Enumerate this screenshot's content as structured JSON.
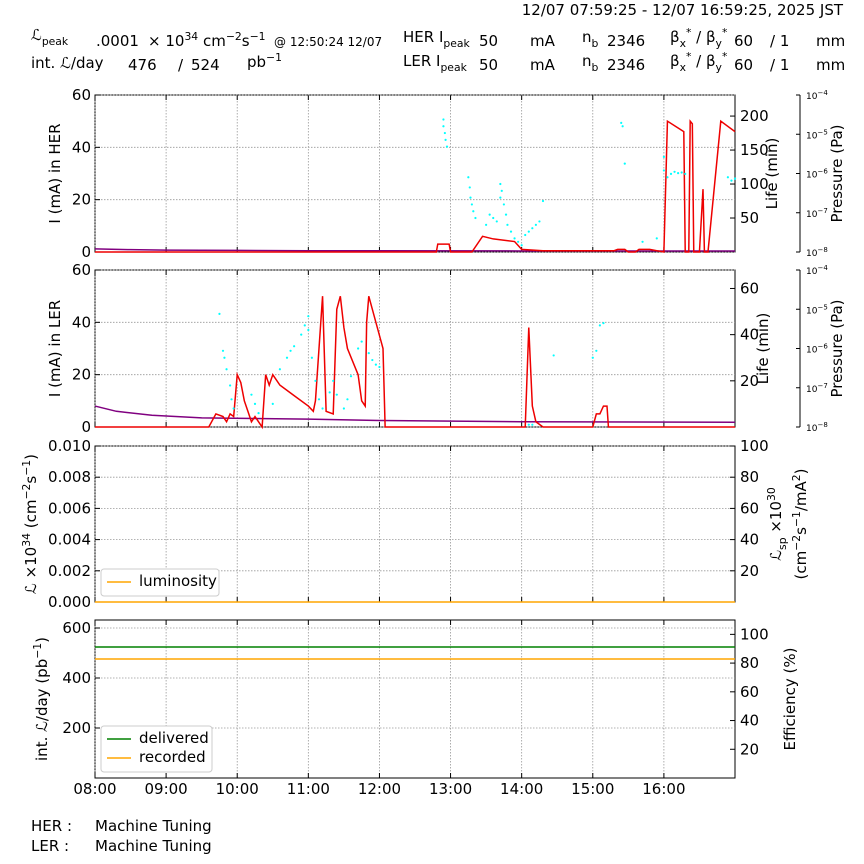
{
  "header": {
    "time_range": "12/07 07:59:25 - 12/07 16:59:25, 2025 JST",
    "lpeak": {
      "label": [
        {
          "text": "ℒ"
        },
        {
          "sub": "peak"
        }
      ],
      "value": ".0001",
      "unit": [
        {
          "text": "× 10"
        },
        {
          "sup": "34"
        },
        {
          "text": " cm"
        },
        {
          "sup": "−2"
        },
        {
          "text": "s"
        },
        {
          "sup": "−1"
        }
      ],
      "at": "@ 12:50:24 12/07"
    },
    "intl": {
      "label": "int. ℒ/day",
      "recorded": "476",
      "sep": "/",
      "delivered": "524",
      "unit": [
        {
          "text": "pb"
        },
        {
          "sup": "−1"
        }
      ]
    },
    "rings": [
      {
        "name": [
          {
            "text": "HER I"
          },
          {
            "sub": "peak"
          }
        ],
        "current": "50",
        "unit": "mA",
        "nb": [
          {
            "text": "n"
          },
          {
            "sub": "b"
          }
        ],
        "bunches": "2346",
        "beta": [
          {
            "text": "β"
          },
          {
            "sub": "x"
          },
          {
            "sup": "*"
          },
          {
            "text": " / β"
          },
          {
            "sub": "y"
          },
          {
            "sup": "*"
          }
        ],
        "beta_value": "60",
        "beta_sep": "/ 1",
        "beta_unit": "mm"
      },
      {
        "name": [
          {
            "text": "LER I"
          },
          {
            "sub": "peak"
          }
        ],
        "current": "50",
        "unit": "mA",
        "nb": [
          {
            "text": "n"
          },
          {
            "sub": "b"
          }
        ],
        "bunches": "2346",
        "beta": [
          {
            "text": "β"
          },
          {
            "sub": "x"
          },
          {
            "sup": "*"
          },
          {
            "text": " / β"
          },
          {
            "sub": "y"
          },
          {
            "sup": "*"
          }
        ],
        "beta_value": "60",
        "beta_sep": "/ 1",
        "beta_unit": "mm"
      }
    ]
  },
  "footer": {
    "rows": [
      {
        "ring": "HER :",
        "status": "Machine Tuning"
      },
      {
        "ring": "LER :",
        "status": "Machine Tuning"
      }
    ]
  },
  "chart_data": [
    {
      "type": "line",
      "grid": true,
      "ylabel": [
        [
          {
            "text": "I (mA) in HER"
          }
        ]
      ],
      "y2label": [
        [
          {
            "text": "Life (min)"
          }
        ]
      ],
      "y3label": [
        [
          {
            "text": "Pressure (Pa)"
          }
        ]
      ],
      "xlim": [
        8,
        17
      ],
      "xticks": [
        8,
        9,
        10,
        11,
        12,
        13,
        14,
        15,
        16
      ],
      "ylim": [
        0,
        60
      ],
      "yticks": [
        0,
        20,
        40,
        60
      ],
      "y2lim": [
        0,
        231
      ],
      "y2ticks": [
        50,
        100,
        150,
        200
      ],
      "y3lim": [
        1e-08,
        0.0001
      ],
      "y3log": true,
      "y3ticks": [
        {
          "value": 1e-08,
          "label": "10",
          "exp": "−8"
        },
        {
          "value": 1e-07,
          "label": "10",
          "exp": "−7"
        },
        {
          "value": 1e-06,
          "label": "10",
          "exp": "−6"
        },
        {
          "value": 1e-05,
          "label": "10",
          "exp": "−5"
        },
        {
          "value": 0.0001,
          "label": "10",
          "exp": "−4"
        }
      ],
      "series": [
        {
          "type": "line",
          "axis": "y",
          "color": "#800080",
          "x": [
            8,
            8.5,
            9,
            10,
            11,
            12,
            14,
            16,
            17
          ],
          "values": [
            1.2,
            0.9,
            0.7,
            0.6,
            0.5,
            0.5,
            0.4,
            0.4,
            0.4
          ]
        },
        {
          "type": "line",
          "axis": "y",
          "color": "#ee0000",
          "x": [
            8,
            12.8,
            12.82,
            12.98,
            13,
            13.3,
            13.45,
            13.6,
            13.9,
            14,
            14.3,
            15.3,
            15.35,
            15.45,
            15.5,
            15.6,
            15.65,
            15.8,
            15.9,
            16,
            16.05,
            16.28,
            16.3,
            16.35,
            16.37,
            16.4,
            16.42,
            16.5,
            16.55,
            16.57,
            16.62,
            16.8,
            17
          ],
          "values": [
            0,
            0,
            3,
            3,
            0,
            0,
            6,
            5,
            4,
            1,
            0.5,
            0.5,
            1,
            1,
            0,
            0,
            1,
            1,
            0.5,
            0,
            50,
            46,
            0,
            0,
            50,
            49,
            0,
            0,
            24,
            0,
            0,
            50,
            46
          ]
        },
        {
          "type": "scatter",
          "axis": "y2",
          "color": "#00ffff",
          "x": [
            12.9,
            12.9,
            12.92,
            12.93,
            12.95,
            13.25,
            13.27,
            13.28,
            13.3,
            13.32,
            13.35,
            13.5,
            13.55,
            13.6,
            13.65,
            13.7,
            13.72,
            13.7,
            13.75,
            13.78,
            13.8,
            13.85,
            13.9,
            13.95,
            14,
            14.05,
            14.1,
            14.15,
            14.2,
            14.25,
            14.3,
            15.4,
            15.42,
            15.45,
            15.7,
            15.9,
            16,
            16,
            16.05,
            16.1,
            16.15,
            16.2,
            16.25,
            16.3,
            16.9,
            16.95,
            17
          ],
          "values": [
            195,
            185,
            175,
            165,
            155,
            110,
            95,
            80,
            70,
            60,
            50,
            40,
            55,
            50,
            45,
            100,
            90,
            80,
            70,
            55,
            40,
            30,
            20,
            15,
            10,
            25,
            30,
            35,
            40,
            45,
            75,
            190,
            185,
            130,
            15,
            20,
            120,
            140,
            110,
            115,
            118,
            116,
            117,
            115,
            110,
            105,
            108
          ]
        }
      ]
    },
    {
      "type": "line",
      "grid": true,
      "ylabel": [
        [
          {
            "text": "I (mA) in LER"
          }
        ]
      ],
      "y2label": [
        [
          {
            "text": "Life (min)"
          }
        ]
      ],
      "y3label": [
        [
          {
            "text": "Pressure (Pa)"
          }
        ]
      ],
      "xlim": [
        8,
        17
      ],
      "xticks": [
        8,
        9,
        10,
        11,
        12,
        13,
        14,
        15,
        16
      ],
      "ylim": [
        0,
        60
      ],
      "yticks": [
        0,
        20,
        40,
        60
      ],
      "y2lim": [
        0,
        68
      ],
      "y2ticks": [
        20,
        40,
        60
      ],
      "y3lim": [
        1e-08,
        0.0001
      ],
      "y3log": true,
      "y3ticks": [
        {
          "value": 1e-08,
          "label": "10",
          "exp": "−8"
        },
        {
          "value": 1e-07,
          "label": "10",
          "exp": "−7"
        },
        {
          "value": 1e-06,
          "label": "10",
          "exp": "−6"
        },
        {
          "value": 1e-05,
          "label": "10",
          "exp": "−5"
        },
        {
          "value": 0.0001,
          "label": "10",
          "exp": "−4"
        }
      ],
      "series": [
        {
          "type": "line",
          "axis": "y",
          "color": "#800080",
          "x": [
            8,
            8.3,
            8.8,
            9.5,
            11,
            12,
            14,
            17
          ],
          "values": [
            8,
            6,
            4.5,
            3.5,
            3,
            2.5,
            2,
            1.8
          ]
        },
        {
          "type": "line",
          "axis": "y",
          "color": "#ee0000",
          "x": [
            8,
            9.6,
            9.7,
            9.8,
            9.85,
            9.9,
            9.95,
            10,
            10.05,
            10.1,
            10.15,
            10.2,
            10.25,
            10.3,
            10.35,
            10.4,
            10.45,
            10.5,
            10.6,
            10.8,
            11,
            11.07,
            11.1,
            11.2,
            11.25,
            11.35,
            11.4,
            11.45,
            11.5,
            11.55,
            11.7,
            11.75,
            11.8,
            11.82,
            11.85,
            12.05,
            12.08,
            14.05,
            14.1,
            14.15,
            14.2,
            14.3,
            15,
            15.05,
            15.1,
            15.15,
            15.2,
            15.22,
            17
          ],
          "values": [
            0,
            0,
            5,
            4,
            2,
            5,
            4,
            20,
            17,
            10,
            6,
            2,
            4,
            2,
            0,
            20,
            16,
            20,
            16,
            12,
            8,
            6,
            10,
            50,
            6,
            5,
            45,
            50,
            38,
            30,
            20,
            10,
            8,
            40,
            50,
            30,
            0,
            0,
            38,
            8,
            2,
            0,
            0,
            5,
            5,
            8,
            8,
            0,
            0
          ]
        },
        {
          "type": "scatter",
          "axis": "y2",
          "color": "#00ffff",
          "x": [
            9.75,
            9.8,
            9.82,
            9.85,
            9.9,
            9.92,
            9.95,
            10.2,
            10.25,
            10.3,
            10.5,
            10.6,
            10.7,
            10.75,
            10.8,
            10.9,
            10.95,
            11,
            11,
            11.05,
            11.1,
            11.15,
            11.2,
            11.3,
            11.35,
            11.4,
            11.5,
            11.55,
            11.6,
            11.7,
            11.75,
            11.85,
            11.9,
            11.95,
            12,
            14.1,
            14.15,
            14.45,
            15,
            15.05,
            15.1,
            15.15
          ],
          "values": [
            49,
            33,
            30,
            25,
            18,
            12,
            8,
            14,
            10,
            6,
            10,
            25,
            30,
            33,
            35,
            40,
            44,
            48,
            42,
            30,
            20,
            12,
            8,
            15,
            20,
            14,
            8,
            12,
            22,
            34,
            37,
            32,
            29,
            27,
            26,
            1,
            1,
            31,
            30,
            33,
            44,
            45
          ]
        }
      ]
    },
    {
      "type": "line",
      "grid": true,
      "legend": "lower left",
      "ylabel": [
        [
          {
            "text": "ℒ ×10"
          },
          {
            "sup": "34"
          },
          {
            "text": " (cm"
          },
          {
            "sup": "−2"
          },
          {
            "text": "s"
          },
          {
            "sup": "−1"
          },
          {
            "text": ")"
          }
        ]
      ],
      "y2label": [
        [
          {
            "text": "ℒ"
          },
          {
            "sub": "sp"
          },
          {
            "text": " ×10"
          },
          {
            "sup": "30"
          }
        ],
        [
          {
            "text": "(cm"
          },
          {
            "sup": "−2"
          },
          {
            "text": "s"
          },
          {
            "sup": "−1"
          },
          {
            "text": "/mA"
          },
          {
            "sup": "2"
          },
          {
            "text": ")"
          }
        ]
      ],
      "xlim": [
        8,
        17
      ],
      "xticks": [
        8,
        9,
        10,
        11,
        12,
        13,
        14,
        15,
        16
      ],
      "ylim": [
        0,
        0.01
      ],
      "yticks": [
        {
          "value": 0,
          "label": "0.000"
        },
        {
          "value": 0.002,
          "label": "0.002"
        },
        {
          "value": 0.004,
          "label": "0.004"
        },
        {
          "value": 0.006,
          "label": "0.006"
        },
        {
          "value": 0.008,
          "label": "0.008"
        },
        {
          "value": 0.01,
          "label": "0.010"
        }
      ],
      "y2lim": [
        0,
        100
      ],
      "y2ticks": [
        20,
        40,
        60,
        80,
        100
      ],
      "series": [
        {
          "type": "line",
          "axis": "y",
          "name": "luminosity",
          "color": "#ffa500",
          "x": [
            8,
            17
          ],
          "values": [
            0,
            0
          ]
        }
      ]
    },
    {
      "type": "line",
      "grid": true,
      "legend": "lower left",
      "ylabel": [
        [
          {
            "text": "int. ℒ/day (pb"
          },
          {
            "sup": "−1"
          },
          {
            "text": ")"
          }
        ]
      ],
      "y2label": [
        [
          {
            "text": "Efficiency (%)"
          }
        ]
      ],
      "xlim": [
        8,
        17
      ],
      "xticks": [
        {
          "value": 8,
          "label": "08:00"
        },
        {
          "value": 9,
          "label": "09:00"
        },
        {
          "value": 10,
          "label": "10:00"
        },
        {
          "value": 11,
          "label": "11:00"
        },
        {
          "value": 12,
          "label": "12:00"
        },
        {
          "value": 13,
          "label": "13:00"
        },
        {
          "value": 14,
          "label": "14:00"
        },
        {
          "value": 15,
          "label": "15:00"
        },
        {
          "value": 16,
          "label": "16:00"
        }
      ],
      "ylim": [
        0,
        632
      ],
      "yticks": [
        200,
        400,
        600
      ],
      "y2lim": [
        0,
        110
      ],
      "y2ticks": [
        20,
        40,
        60,
        80,
        100
      ],
      "series": [
        {
          "type": "line",
          "axis": "y",
          "name": "delivered",
          "color": "#008000",
          "x": [
            8,
            17
          ],
          "values": [
            524,
            524
          ]
        },
        {
          "type": "line",
          "axis": "y",
          "name": "recorded",
          "color": "#ffa500",
          "x": [
            8,
            17
          ],
          "values": [
            476,
            476
          ]
        }
      ]
    }
  ]
}
